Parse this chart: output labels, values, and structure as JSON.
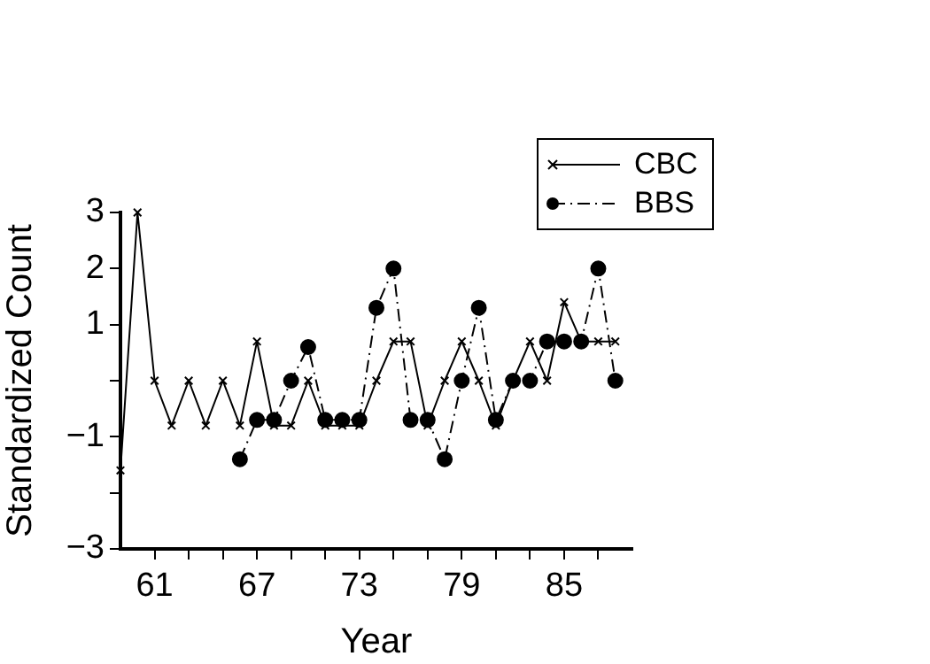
{
  "chart_data": {
    "type": "line",
    "xlabel": "Year",
    "ylabel": "Standardized Count",
    "xlim": [
      59,
      89
    ],
    "xticks": [
      {
        "value": 61,
        "label": "61"
      },
      {
        "value": 63,
        "label": null
      },
      {
        "value": 65,
        "label": null
      },
      {
        "value": 67,
        "label": "67"
      },
      {
        "value": 69,
        "label": null
      },
      {
        "value": 71,
        "label": null
      },
      {
        "value": 73,
        "label": "73"
      },
      {
        "value": 75,
        "label": null
      },
      {
        "value": 77,
        "label": null
      },
      {
        "value": 79,
        "label": "79"
      },
      {
        "value": 81,
        "label": null
      },
      {
        "value": 83,
        "label": null
      },
      {
        "value": 85,
        "label": "85"
      },
      {
        "value": 87,
        "label": null
      }
    ],
    "ylim": [
      -3,
      3
    ],
    "yticks": [
      {
        "value": -3,
        "label": "−3"
      },
      {
        "value": -2,
        "label": null
      },
      {
        "value": -1,
        "label": "−1"
      },
      {
        "value": 0,
        "label": null
      },
      {
        "value": 1,
        "label": "1"
      },
      {
        "value": 2,
        "label": "2"
      },
      {
        "value": 3,
        "label": "3"
      }
    ],
    "grid": false,
    "legend": "top right",
    "series": [
      {
        "name": "CBC",
        "color": "#000000",
        "marker": "cross",
        "line_style": "solid",
        "x": [
          59,
          60,
          61,
          62,
          63,
          64,
          65,
          66,
          67,
          68,
          69,
          70,
          71,
          72,
          73,
          74,
          75,
          76,
          77,
          78,
          79,
          80,
          81,
          82,
          83,
          84,
          85,
          86,
          87,
          88
        ],
        "values": [
          -1.6,
          3,
          0,
          -0.8,
          0,
          -0.8,
          0,
          -0.8,
          0.7,
          -0.8,
          -0.8,
          0,
          -0.8,
          -0.8,
          -0.8,
          0,
          0.7,
          0.7,
          -0.8,
          0,
          0.7,
          0,
          -0.8,
          0,
          0.7,
          0,
          1.4,
          0.7,
          0.7,
          0.7
        ]
      },
      {
        "name": "BBS",
        "color": "#000000",
        "marker": "circle",
        "line_style": "dashed",
        "x": [
          66,
          67,
          68,
          69,
          70,
          71,
          72,
          73,
          74,
          75,
          76,
          77,
          78,
          79,
          80,
          81,
          82,
          83,
          84,
          85,
          86,
          87,
          88
        ],
        "values": [
          -1.4,
          -0.7,
          -0.7,
          0,
          0.6,
          -0.7,
          -0.7,
          -0.7,
          1.3,
          2,
          -0.7,
          -0.7,
          -1.4,
          0,
          1.3,
          -0.7,
          0,
          0,
          0.7,
          0.7,
          0.7,
          2,
          0
        ]
      }
    ]
  }
}
